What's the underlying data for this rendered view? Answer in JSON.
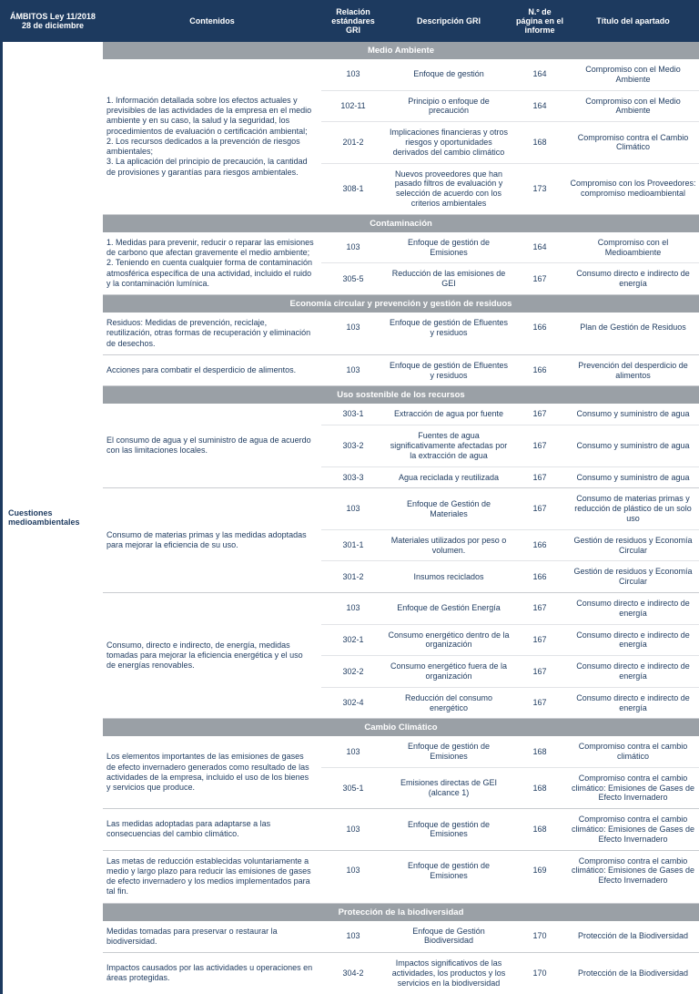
{
  "colors": {
    "header_bg": "#1d3a5f",
    "header_text": "#ffffff",
    "section_bg": "#9aa0a6",
    "section_text": "#ffffff",
    "body_text": "#1d3a5f",
    "row_border": "#e2e4e7",
    "group_border": "#c9ccd0"
  },
  "hdr": {
    "ambito": "ÁMBITOS Ley 11/2018 28 de diciembre",
    "contenidos": "Contenidos",
    "gri": "Relación estándares GRI",
    "desc": "Descripción GRI",
    "page": "N.º de página en el informe",
    "titulo": "Título del apartado"
  },
  "ambito_label": "Cuestiones medioambientales",
  "sections": [
    {
      "title": "Medio Ambiente",
      "groups": [
        {
          "contenido": "1. Información detallada sobre los efectos actuales y previsibles de las actividades de la empresa en el medio ambiente y en su caso, la salud y la seguridad, los procedimientos de evaluación o certificación ambiental;\n2. Los recursos dedicados a la prevención de riesgos ambientales;\n3. La aplicación del principio de precaución, la cantidad de provisiones y garantías para riesgos ambientales.",
          "rows": [
            {
              "gri": "103",
              "desc": "Enfoque de gestión",
              "page": "164",
              "titulo": "Compromiso con el Medio Ambiente"
            },
            {
              "gri": "102-11",
              "desc": "Principio o enfoque de precaución",
              "page": "164",
              "titulo": "Compromiso con el Medio Ambiente"
            },
            {
              "gri": "201-2",
              "desc": "Implicaciones financieras y otros riesgos y oportunidades derivados del cambio climático",
              "page": "168",
              "titulo": "Compromiso contra el Cambio Climático"
            },
            {
              "gri": "308-1",
              "desc": "Nuevos proveedores que han pasado filtros de evaluación y selección de acuerdo con los criterios ambientales",
              "page": "173",
              "titulo": "Compromiso con los Proveedores: compromiso medioambiental"
            }
          ]
        }
      ]
    },
    {
      "title": "Contaminación",
      "groups": [
        {
          "contenido": "1. Medidas para prevenir, reducir o reparar las emisiones de carbono que afectan gravemente el medio ambiente;\n2. Teniendo en cuenta cualquier forma de contaminación atmosférica específica de una actividad, incluido el ruido y la contaminación lumínica.",
          "rows": [
            {
              "gri": "103",
              "desc": "Enfoque de gestión de Emisiones",
              "page": "164",
              "titulo": "Compromiso con el Medioambiente"
            },
            {
              "gri": "305-5",
              "desc": "Reducción de las emisiones de GEI",
              "page": "167",
              "titulo": "Consumo directo e indirecto de energía"
            }
          ]
        }
      ]
    },
    {
      "title": "Economía circular y prevención y gestión de residuos",
      "groups": [
        {
          "contenido": "Residuos: Medidas de prevención, reciclaje, reutilización, otras formas de recuperación y eliminación de desechos.",
          "rows": [
            {
              "gri": "103",
              "desc": "Enfoque de gestión de Efluentes y residuos",
              "page": "166",
              "titulo": "Plan de Gestión de Residuos"
            }
          ]
        },
        {
          "contenido": "Acciones para combatir el desperdicio de alimentos.",
          "rows": [
            {
              "gri": "103",
              "desc": "Enfoque de gestión de Efluentes y residuos",
              "page": "166",
              "titulo": "Prevención del desperdicio de alimentos"
            }
          ]
        }
      ]
    },
    {
      "title": "Uso sostenible de los recursos",
      "groups": [
        {
          "contenido": "El consumo de agua y el suministro de agua de acuerdo con las limitaciones locales.",
          "rows": [
            {
              "gri": "303-1",
              "desc": "Extracción de agua por fuente",
              "page": "167",
              "titulo": "Consumo y suministro de agua"
            },
            {
              "gri": "303-2",
              "desc": "Fuentes de agua significativamente afectadas por la extracción de agua",
              "page": "167",
              "titulo": "Consumo y suministro de agua"
            },
            {
              "gri": "303-3",
              "desc": "Agua reciclada y reutilizada",
              "page": "167",
              "titulo": "Consumo y suministro de agua"
            }
          ]
        },
        {
          "contenido": "Consumo de materias primas y las medidas adoptadas para mejorar la eficiencia de su uso.",
          "rows": [
            {
              "gri": "103",
              "desc": "Enfoque de Gestión de Materiales",
              "page": "167",
              "titulo": "Consumo de materias primas y reducción de plástico de un solo uso"
            },
            {
              "gri": "301-1",
              "desc": "Materiales utilizados por peso o volumen.",
              "page": "166",
              "titulo": "Gestión de residuos y Economía Circular"
            },
            {
              "gri": "301-2",
              "desc": "Insumos reciclados",
              "page": "166",
              "titulo": "Gestión de residuos y Economía Circular"
            }
          ]
        },
        {
          "contenido": "Consumo, directo e indirecto, de energía, medidas tomadas para mejorar la eficiencia energética y el uso de energías renovables.",
          "rows": [
            {
              "gri": "103",
              "desc": "Enfoque de Gestión Energía",
              "page": "167",
              "titulo": "Consumo directo e indirecto de energía"
            },
            {
              "gri": "302-1",
              "desc": "Consumo energético dentro de la organización",
              "page": "167",
              "titulo": "Consumo directo e indirecto de energía"
            },
            {
              "gri": "302-2",
              "desc": "Consumo energético fuera de la organización",
              "page": "167",
              "titulo": "Consumo directo e indirecto de energía"
            },
            {
              "gri": "302-4",
              "desc": "Reducción del consumo energético",
              "page": "167",
              "titulo": "Consumo directo e indirecto de energía"
            }
          ]
        }
      ]
    },
    {
      "title": "Cambio Climático",
      "groups": [
        {
          "contenido": "Los elementos importantes de las emisiones de gases de efecto invernadero generados como resultado de las actividades de la empresa, incluido el uso de los bienes y servicios que produce.",
          "rows": [
            {
              "gri": "103",
              "desc": "Enfoque de gestión de Emisiones",
              "page": "168",
              "titulo": "Compromiso contra el cambio climático"
            },
            {
              "gri": "305-1",
              "desc": "Emisiones directas de GEI (alcance 1)",
              "page": "168",
              "titulo": "Compromiso contra el cambio climático: Emisiones de Gases de Efecto Invernadero"
            }
          ]
        },
        {
          "contenido": "Las medidas adoptadas para adaptarse a las consecuencias del cambio climático.",
          "rows": [
            {
              "gri": "103",
              "desc": "Enfoque de gestión de Emisiones",
              "page": "168",
              "titulo": "Compromiso contra el cambio climático: Emisiones de Gases de Efecto Invernadero"
            }
          ]
        },
        {
          "contenido": "Las metas de reducción establecidas voluntariamente a medio y largo plazo para reducir las emisiones de gases de efecto invernadero y los medios implementados para tal fin.",
          "rows": [
            {
              "gri": "103",
              "desc": "Enfoque de gestión de Emisiones",
              "page": "169",
              "titulo": "Compromiso contra el cambio climático: Emisiones de Gases de Efecto Invernadero"
            }
          ]
        }
      ]
    },
    {
      "title": "Protección de la biodiversidad",
      "groups": [
        {
          "contenido": "Medidas tomadas para preservar o restaurar la biodiversidad.",
          "rows": [
            {
              "gri": "103",
              "desc": "Enfoque de Gestión Biodiversidad",
              "page": "170",
              "titulo": "Protección de la Biodiversidad"
            }
          ]
        },
        {
          "contenido": "Impactos causados por las actividades u operaciones en áreas protegidas.",
          "rows": [
            {
              "gri": "304-2",
              "desc": "Impactos significativos de las actividades, los productos y los servicios en la biodiversidad",
              "page": "170",
              "titulo": "Protección de la Biodiversidad"
            }
          ]
        }
      ]
    }
  ]
}
